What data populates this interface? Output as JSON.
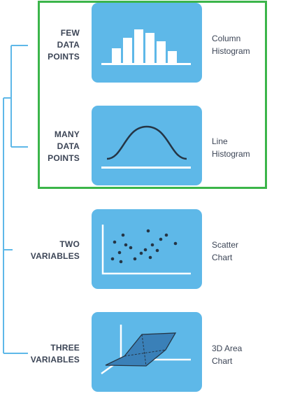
{
  "rows": [
    {
      "label_lines": [
        "FEW",
        "DATA",
        "POINTS"
      ],
      "chart_lines": [
        "Column",
        "Histogram"
      ],
      "icon": "column-histogram-icon"
    },
    {
      "label_lines": [
        "MANY",
        "DATA",
        "POINTS"
      ],
      "chart_lines": [
        "Line",
        "Histogram"
      ],
      "icon": "line-histogram-icon"
    },
    {
      "label_lines": [
        "TWO",
        "VARIABLES"
      ],
      "chart_lines": [
        "Scatter",
        "Chart"
      ],
      "icon": "scatter-chart-icon"
    },
    {
      "label_lines": [
        "THREE",
        "VARIABLES"
      ],
      "chart_lines": [
        "3D Area",
        "Chart"
      ],
      "icon": "3d-area-chart-icon"
    }
  ],
  "colors": {
    "tile": "#5eb8e8",
    "tree_line": "#5eb8e8",
    "icon_white": "#ffffff",
    "icon_dark": "#253545",
    "highlight_border": "#3bb54a",
    "label_text": "#3c4556"
  }
}
